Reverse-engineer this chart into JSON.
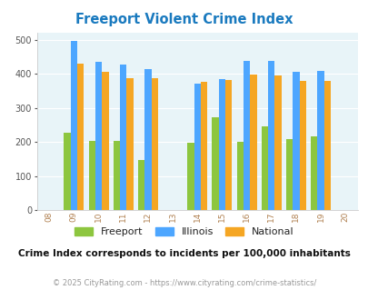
{
  "title": "Freeport Violent Crime Index",
  "years": [
    2009,
    2010,
    2011,
    2012,
    2014,
    2015,
    2016,
    2017,
    2018,
    2019
  ],
  "freeport": [
    228,
    203,
    202,
    148,
    197,
    272,
    200,
    247,
    207,
    215
  ],
  "illinois": [
    498,
    435,
    428,
    414,
    370,
    384,
    438,
    437,
    405,
    409
  ],
  "national": [
    430,
    405,
    387,
    387,
    376,
    383,
    397,
    394,
    380,
    379
  ],
  "color_freeport": "#8dc63f",
  "color_illinois": "#4da6ff",
  "color_national": "#f5a623",
  "xlim": [
    2007.5,
    2020.5
  ],
  "ylim": [
    0,
    520
  ],
  "yticks": [
    0,
    100,
    200,
    300,
    400,
    500
  ],
  "xlabel_color": "#b08050",
  "title_color": "#1a7abf",
  "bg_color": "#e8f4f8",
  "subtitle": "Crime Index corresponds to incidents per 100,000 inhabitants",
  "footer": "© 2025 CityRating.com - https://www.cityrating.com/crime-statistics/",
  "bar_width": 0.27,
  "legend_label_color": "#222222"
}
